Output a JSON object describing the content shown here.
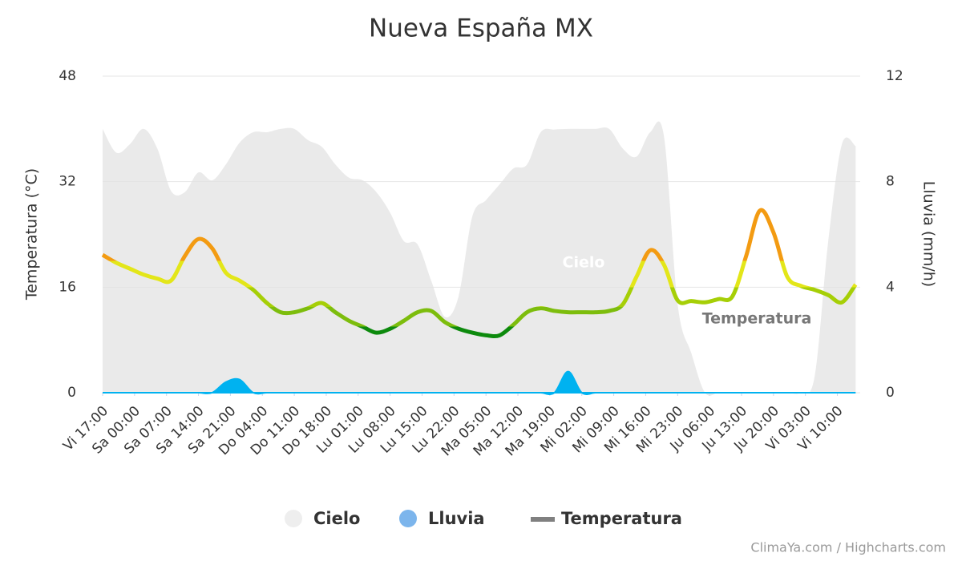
{
  "chart_data": {
    "type": "weather",
    "title": "Nueva España MX",
    "y_label": "Temperatura (°C)",
    "y2_label": "Lluvia (mm/h)",
    "xlim": [
      0,
      166
    ],
    "xticks": [
      {
        "value": 0,
        "label": "Vi 17:00"
      },
      {
        "value": 7,
        "label": "Sa 00:00"
      },
      {
        "value": 14,
        "label": "Sa 07:00"
      },
      {
        "value": 21,
        "label": "Sa 14:00"
      },
      {
        "value": 28,
        "label": "Sa 21:00"
      },
      {
        "value": 35,
        "label": "Do 04:00"
      },
      {
        "value": 42,
        "label": "Do 11:00"
      },
      {
        "value": 49,
        "label": "Do 18:00"
      },
      {
        "value": 56,
        "label": "Lu 01:00"
      },
      {
        "value": 63,
        "label": "Lu 08:00"
      },
      {
        "value": 70,
        "label": "Lu 15:00"
      },
      {
        "value": 77,
        "label": "Lu 22:00"
      },
      {
        "value": 84,
        "label": "Ma 05:00"
      },
      {
        "value": 91,
        "label": "Ma 12:00"
      },
      {
        "value": 98,
        "label": "Ma 19:00"
      },
      {
        "value": 105,
        "label": "Mi 02:00"
      },
      {
        "value": 112,
        "label": "Mi 09:00"
      },
      {
        "value": 119,
        "label": "Mi 16:00"
      },
      {
        "value": 126,
        "label": "Mi 23:00"
      },
      {
        "value": 133,
        "label": "Ju 06:00"
      },
      {
        "value": 140,
        "label": "Ju 13:00"
      },
      {
        "value": 147,
        "label": "Ju 20:00"
      },
      {
        "value": 154,
        "label": "Vi 03:00"
      },
      {
        "value": 161,
        "label": "Vi 10:00"
      }
    ],
    "ylim": [
      0,
      48
    ],
    "yticks": [
      0,
      16,
      32,
      48
    ],
    "y2lim": [
      0,
      12
    ],
    "y2ticks": [
      0,
      4,
      8,
      12
    ],
    "grid": true,
    "x": [
      0,
      3,
      6,
      9,
      12,
      15,
      18,
      21,
      24,
      27,
      30,
      33,
      36,
      39,
      42,
      45,
      48,
      51,
      54,
      57,
      60,
      63,
      66,
      69,
      72,
      75,
      78,
      81,
      84,
      87,
      90,
      93,
      96,
      99,
      102,
      105,
      108,
      111,
      114,
      117,
      120,
      123,
      126,
      129,
      132,
      135,
      138,
      141,
      144,
      147,
      150,
      153,
      156,
      159,
      162,
      165
    ],
    "series": [
      {
        "name": "Cielo",
        "kind": "area",
        "color": "#e3e3e3",
        "values": [
          40,
          36.4,
          37.7,
          40,
          37,
          30.6,
          30.4,
          33.4,
          32.2,
          34.6,
          37.9,
          39.5,
          39.5,
          40,
          40,
          38.3,
          37.3,
          34.6,
          32.6,
          32.2,
          30.4,
          27.3,
          23,
          22.5,
          17,
          11.5,
          14.6,
          26.7,
          29.2,
          31.6,
          34,
          34.6,
          39.5,
          39.9,
          40,
          40,
          40,
          40,
          37,
          35.8,
          39.5,
          38.9,
          13.4,
          6,
          0,
          0,
          0,
          0,
          0,
          0,
          0,
          0,
          2.4,
          23,
          37.7,
          37.4
        ]
      },
      {
        "name": "Lluvia",
        "kind": "area",
        "axis": "y2",
        "color": "#00b2f0",
        "values": [
          0,
          0,
          0,
          0,
          0,
          0,
          0,
          0,
          0,
          0.4,
          0.5,
          0,
          0,
          0,
          0,
          0,
          0,
          0,
          0,
          0,
          0,
          0,
          0,
          0,
          0,
          0,
          0,
          0,
          0,
          0,
          0,
          0,
          0,
          0,
          0.8,
          0,
          0,
          0,
          0,
          0,
          0,
          0,
          0,
          0,
          0,
          0,
          0,
          0,
          0,
          0,
          0,
          0,
          0,
          0,
          0,
          0
        ]
      },
      {
        "name": "Temperatura",
        "kind": "line",
        "color": "#808080",
        "zones": [
          {
            "value": 10,
            "color": "#0d8a0d"
          },
          {
            "value": 13,
            "color": "#7dbd0d"
          },
          {
            "value": 16,
            "color": "#a6cf07"
          },
          {
            "value": 20,
            "color": "#e3e619"
          },
          {
            "color": "#f39b12"
          }
        ],
        "values": [
          20.9,
          19.7,
          18.8,
          17.9,
          17.3,
          17.0,
          20.7,
          23.3,
          21.9,
          18.2,
          17.0,
          15.6,
          13.6,
          12.2,
          12.2,
          12.8,
          13.6,
          12.2,
          10.9,
          10.0,
          9.1,
          9.7,
          10.9,
          12.2,
          12.4,
          10.7,
          9.7,
          9.1,
          8.7,
          8.7,
          10.3,
          12.2,
          12.8,
          12.4,
          12.2,
          12.2,
          12.2,
          12.4,
          13.4,
          17.6,
          21.6,
          19.4,
          14.0,
          13.9,
          13.7,
          14.2,
          14.6,
          20.7,
          27.6,
          24.3,
          17.6,
          16.2,
          15.6,
          14.8,
          13.7,
          16.4
        ]
      }
    ],
    "annotations": [
      "Cielo",
      "Temperatura"
    ],
    "credits": "ClimaYa.com / Highcharts.com"
  }
}
